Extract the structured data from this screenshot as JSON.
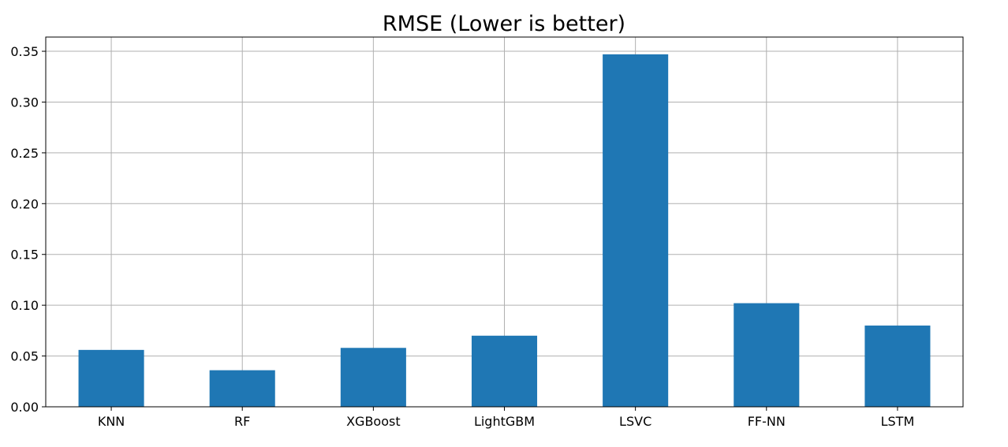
{
  "chart_data": {
    "type": "bar",
    "title": "RMSE (Lower is better)",
    "xlabel": "",
    "ylabel": "",
    "categories": [
      "KNN",
      "RF",
      "XGBoost",
      "LightGBM",
      "LSVC",
      "FF-NN",
      "LSTM"
    ],
    "values": [
      0.056,
      0.036,
      0.058,
      0.07,
      0.347,
      0.102,
      0.08
    ],
    "ylim": [
      0,
      0.364
    ],
    "yticks": [
      0.0,
      0.05,
      0.1,
      0.15,
      0.2,
      0.25,
      0.3,
      0.35
    ],
    "ytick_labels": [
      "0.00",
      "0.05",
      "0.10",
      "0.15",
      "0.20",
      "0.25",
      "0.30",
      "0.35"
    ],
    "grid": true,
    "bar_color": "#1f77b4",
    "grid_color": "#b0b0b0"
  }
}
